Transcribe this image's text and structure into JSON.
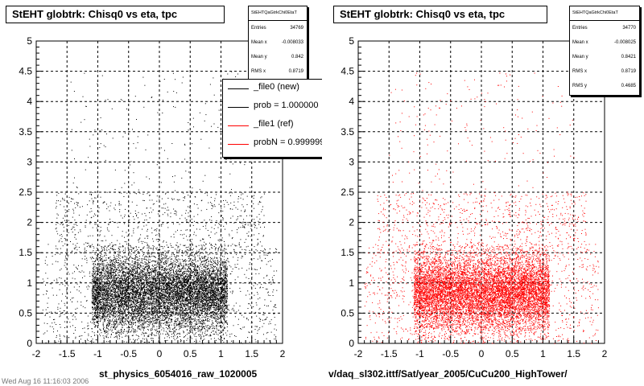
{
  "colors": {
    "new": "#000000",
    "ref": "#ff0000",
    "grid": "#000000",
    "background": "#ffffff"
  },
  "chart_data": [
    {
      "type": "scatter",
      "title": "StEHT globtrk: Chisq0 vs eta, tpc",
      "xlabel": "st_physics_6054016_raw_1020005",
      "ylabel": "",
      "xlim": [
        -2,
        2
      ],
      "ylim": [
        0,
        5
      ],
      "x_ticks": [
        "-2",
        "-1.5",
        "-1",
        "-0.5",
        "0",
        "0.5",
        "1",
        "1.5",
        "2"
      ],
      "y_ticks": [
        "0",
        "0.5",
        "1",
        "1.5",
        "2",
        "2.5",
        "3",
        "3.5",
        "4",
        "4.5",
        "5"
      ],
      "grid": true,
      "marker_color": "#000000",
      "distribution": {
        "x_core": [
          -1.1,
          1.1
        ],
        "x_tail": [
          -1.9,
          1.9
        ],
        "y_center": 0.84,
        "y_core_top": 1.5,
        "y_sparse_top": 2.5,
        "y_outlier_top": 4.5
      },
      "stats": {
        "name": "StEHTQaGtrkChi0EtaT",
        "entries": {
          "label": "Entries",
          "value": "34769"
        },
        "mean_x": {
          "label": "Mean x",
          "value": "-0.008033"
        },
        "mean_y": {
          "label": "Mean y",
          "value": "0.842"
        },
        "rms_x": {
          "label": "RMS x",
          "value": "0.8719"
        }
      },
      "legend": [
        {
          "label": "_file0 (new)",
          "color": "#000000"
        },
        {
          "label": "prob = 1.000000",
          "color": "#000000"
        },
        {
          "label": "_file1 (ref)",
          "color": "#ff0000"
        },
        {
          "label": "probN = 0.999999",
          "color": "#ff0000"
        }
      ]
    },
    {
      "type": "scatter",
      "title": "StEHT globtrk: Chisq0 vs eta, tpc",
      "xlabel": "v/daq_sl302.ittf/Sat/year_2005/CuCu200_HighTower/",
      "ylabel": "",
      "xlim": [
        -2,
        2
      ],
      "ylim": [
        0,
        5
      ],
      "x_ticks": [
        "-2",
        "-1.5",
        "-1",
        "-0.5",
        "0",
        "0.5",
        "1",
        "1.5",
        "2"
      ],
      "y_ticks": [
        "0",
        "0.5",
        "1",
        "1.5",
        "2",
        "2.5",
        "3",
        "3.5",
        "4",
        "4.5",
        "5"
      ],
      "grid": true,
      "marker_color": "#ff0000",
      "distribution": {
        "x_core": [
          -1.1,
          1.1
        ],
        "x_tail": [
          -1.9,
          1.9
        ],
        "y_center": 0.84,
        "y_core_top": 1.5,
        "y_sparse_top": 2.5,
        "y_outlier_top": 4.5
      },
      "stats": {
        "name": "StEHTQaGtrkChi0EtaT",
        "entries": {
          "label": "Entries",
          "value": "34770"
        },
        "mean_x": {
          "label": "Mean x",
          "value": "-0.008025"
        },
        "mean_y": {
          "label": "Mean y",
          "value": "0.8421"
        },
        "rms_x": {
          "label": "RMS x",
          "value": "0.8719"
        },
        "rms_y": {
          "label": "RMS y",
          "value": "0.4685"
        }
      }
    }
  ],
  "footer_text": "Wed Aug 16 11:16:03 2006"
}
